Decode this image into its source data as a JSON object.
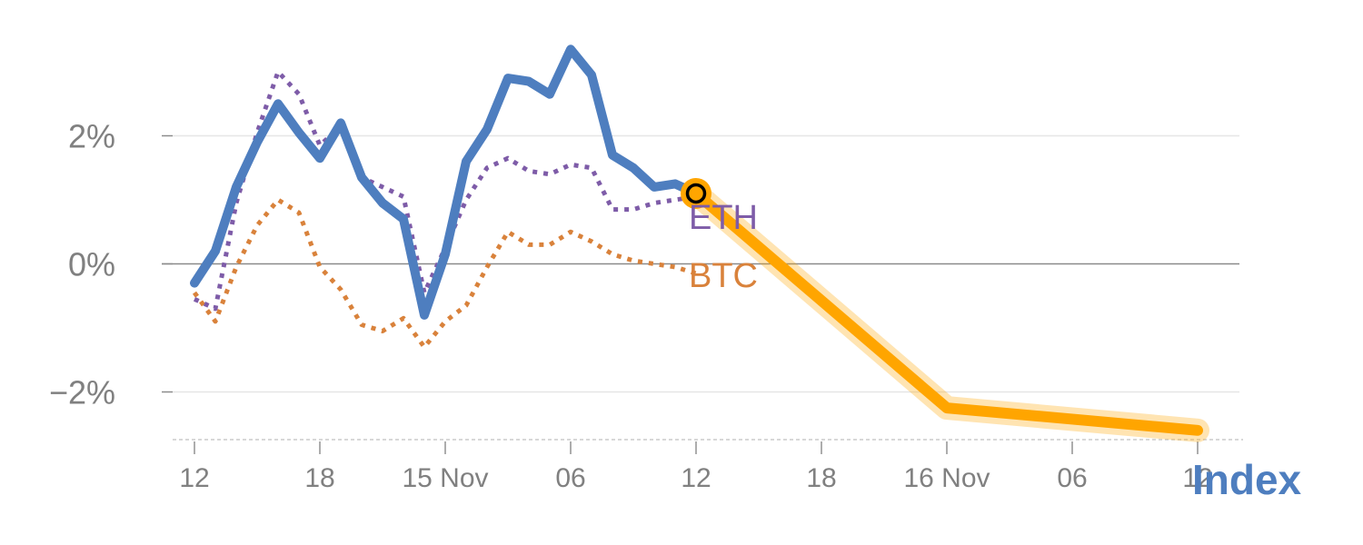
{
  "chart_data": {
    "type": "line",
    "title": "",
    "xlabel": "",
    "ylabel": "",
    "ylim": [
      -2.75,
      3.55
    ],
    "y_ticks": [
      {
        "value": 2,
        "label": "2%"
      },
      {
        "value": 0,
        "label": "0%"
      },
      {
        "value": -2,
        "label": "−2%"
      }
    ],
    "x_ticks": [
      {
        "hour": 0,
        "label": "12"
      },
      {
        "hour": 6,
        "label": "18"
      },
      {
        "hour": 12,
        "label": "15 Nov"
      },
      {
        "hour": 18,
        "label": "06"
      },
      {
        "hour": 24,
        "label": "12"
      },
      {
        "hour": 30,
        "label": "18"
      },
      {
        "hour": 36,
        "label": "16 Nov"
      },
      {
        "hour": 42,
        "label": "06"
      },
      {
        "hour": 48,
        "label": "12"
      }
    ],
    "grid": true,
    "series": [
      {
        "name": "Index",
        "color": "#4e7ebf",
        "style": "solid",
        "x": [
          0,
          1,
          2,
          3,
          4,
          5,
          6,
          7,
          8,
          9,
          10,
          11,
          12,
          13,
          14,
          15,
          16,
          17,
          18,
          19,
          20,
          21,
          22,
          23,
          24
        ],
        "y": [
          -0.3,
          0.2,
          1.2,
          1.9,
          2.5,
          2.05,
          1.65,
          2.2,
          1.35,
          0.95,
          0.7,
          -0.8,
          0.15,
          1.6,
          2.1,
          2.9,
          2.85,
          2.65,
          3.35,
          2.95,
          1.7,
          1.5,
          1.2,
          1.25,
          1.1
        ]
      },
      {
        "name": "ETH",
        "color": "#7e5ca8",
        "style": "dotted",
        "x": [
          0,
          1,
          2,
          3,
          4,
          5,
          6,
          7,
          8,
          9,
          10,
          11,
          12,
          13,
          14,
          15,
          16,
          17,
          18,
          19,
          20,
          21,
          22,
          23,
          24
        ],
        "y": [
          -0.55,
          -0.7,
          0.95,
          2.05,
          3.0,
          2.65,
          1.85,
          2.15,
          1.35,
          1.2,
          1.05,
          -0.45,
          0.25,
          1.0,
          1.5,
          1.65,
          1.45,
          1.4,
          1.55,
          1.5,
          0.85,
          0.85,
          0.95,
          1.0,
          1.05
        ]
      },
      {
        "name": "BTC",
        "color": "#d9823b",
        "style": "dotted",
        "x": [
          0,
          1,
          2,
          3,
          4,
          5,
          6,
          7,
          8,
          9,
          10,
          11,
          12,
          13,
          14,
          15,
          16,
          17,
          18,
          19,
          20,
          21,
          22,
          23,
          24
        ],
        "y": [
          -0.45,
          -0.9,
          -0.05,
          0.6,
          1.0,
          0.8,
          -0.05,
          -0.4,
          -0.95,
          -1.05,
          -0.85,
          -1.3,
          -0.9,
          -0.65,
          -0.05,
          0.5,
          0.3,
          0.3,
          0.5,
          0.35,
          0.15,
          0.05,
          0.0,
          -0.05,
          -0.15
        ]
      }
    ],
    "projection": {
      "color": "#ffa500",
      "x": [
        24,
        36,
        48
      ],
      "y": [
        1.1,
        -2.25,
        -2.6
      ]
    },
    "marker": {
      "x": 24,
      "y": 1.1,
      "fill": "#ffa500",
      "stroke": "#000000"
    },
    "labels": {
      "eth": {
        "text": "ETH",
        "color": "#7e5ca8"
      },
      "btc": {
        "text": "BTC",
        "color": "#d9823b"
      },
      "index": {
        "text": "Index",
        "color": "#4e7ebf"
      }
    }
  }
}
